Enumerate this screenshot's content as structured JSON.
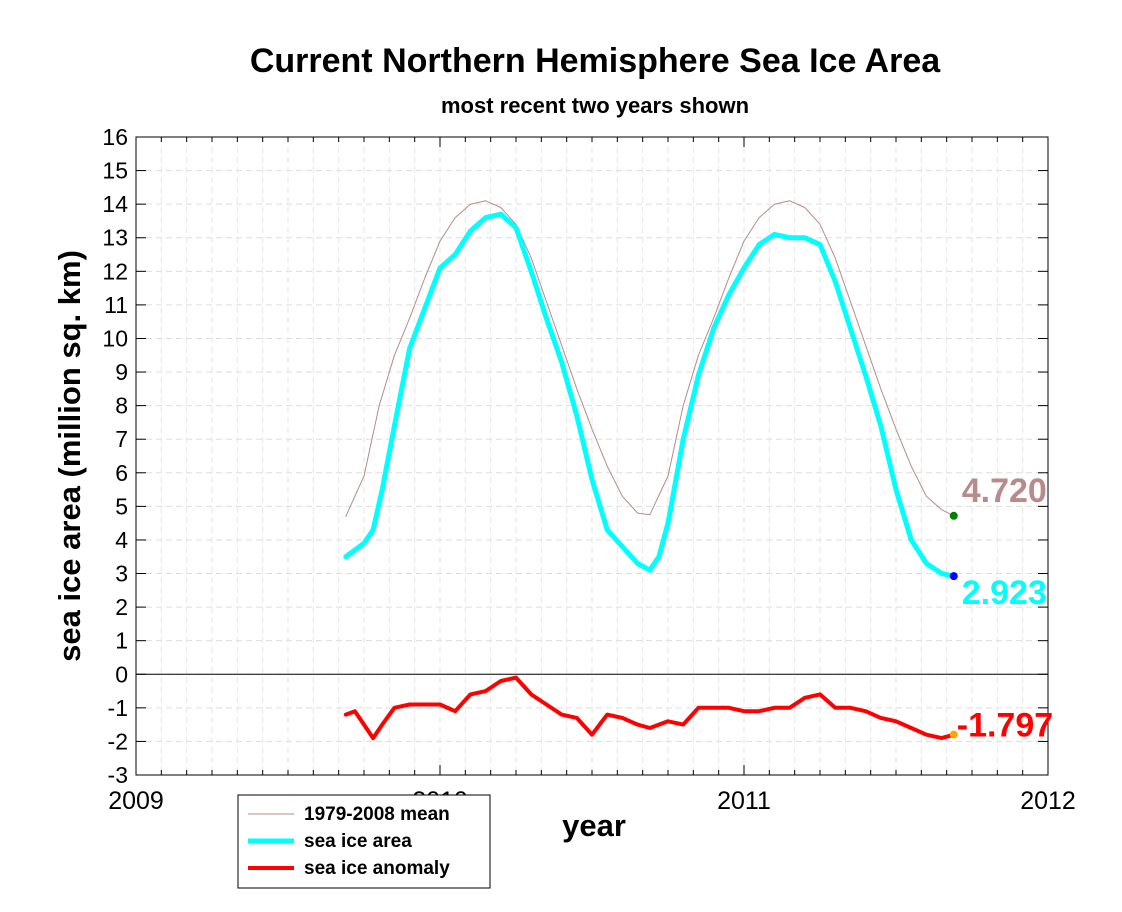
{
  "chart_data": {
    "type": "line",
    "title": "Current Northern Hemisphere Sea Ice Area",
    "subtitle": "most recent two years shown",
    "xlabel": "year",
    "ylabel": "sea ice area (million sq. km)",
    "xlim": [
      2009,
      2012
    ],
    "ylim": [
      -3,
      16
    ],
    "x_ticks": [
      "2009",
      "2010",
      "2011",
      "2012"
    ],
    "y_ticks": [
      "16",
      "15",
      "14",
      "13",
      "12",
      "11",
      "10",
      "9",
      "8",
      "7",
      "6",
      "5",
      "4",
      "3",
      "2",
      "1",
      "0",
      "-1",
      "-2",
      "-3"
    ],
    "grid": true,
    "legend_position": "bottom-left",
    "series": [
      {
        "name": "1979-2008 mean",
        "color": "#b88a8a",
        "x": [
          2009.69,
          2009.75,
          2009.8,
          2009.85,
          2009.9,
          2009.95,
          2010.0,
          2010.05,
          2010.1,
          2010.15,
          2010.2,
          2010.25,
          2010.3,
          2010.35,
          2010.4,
          2010.45,
          2010.5,
          2010.55,
          2010.6,
          2010.65,
          2010.69,
          2010.75,
          2010.8,
          2010.85,
          2010.9,
          2010.95,
          2011.0,
          2011.05,
          2011.1,
          2011.15,
          2011.2,
          2011.25,
          2011.3,
          2011.35,
          2011.4,
          2011.45,
          2011.5,
          2011.55,
          2011.6,
          2011.65,
          2011.69
        ],
        "values": [
          4.7,
          5.9,
          8.0,
          9.5,
          10.6,
          11.8,
          12.9,
          13.6,
          14.0,
          14.1,
          13.9,
          13.4,
          12.4,
          11.1,
          9.8,
          8.5,
          7.3,
          6.2,
          5.3,
          4.8,
          4.75,
          5.9,
          8.0,
          9.5,
          10.6,
          11.8,
          12.9,
          13.6,
          14.0,
          14.1,
          13.9,
          13.4,
          12.4,
          11.1,
          9.8,
          8.5,
          7.3,
          6.2,
          5.3,
          4.9,
          4.72
        ]
      },
      {
        "name": "sea ice area",
        "color": "#00ffff",
        "x": [
          2009.69,
          2009.72,
          2009.75,
          2009.78,
          2009.81,
          2009.85,
          2009.9,
          2009.95,
          2010.0,
          2010.05,
          2010.1,
          2010.15,
          2010.2,
          2010.25,
          2010.3,
          2010.35,
          2010.4,
          2010.45,
          2010.5,
          2010.55,
          2010.6,
          2010.65,
          2010.69,
          2010.72,
          2010.75,
          2010.8,
          2010.85,
          2010.9,
          2010.95,
          2011.0,
          2011.05,
          2011.1,
          2011.15,
          2011.2,
          2011.25,
          2011.3,
          2011.35,
          2011.4,
          2011.45,
          2011.5,
          2011.55,
          2011.6,
          2011.65,
          2011.69
        ],
        "values": [
          3.5,
          3.7,
          3.9,
          4.3,
          5.5,
          7.4,
          9.7,
          10.9,
          12.1,
          12.5,
          13.2,
          13.6,
          13.7,
          13.3,
          12.0,
          10.6,
          9.3,
          7.7,
          5.8,
          4.3,
          3.8,
          3.3,
          3.1,
          3.5,
          4.5,
          7.0,
          8.9,
          10.3,
          11.3,
          12.1,
          12.8,
          13.1,
          13.0,
          13.0,
          12.8,
          11.7,
          10.3,
          8.9,
          7.4,
          5.5,
          4.0,
          3.3,
          3.0,
          2.92
        ]
      },
      {
        "name": "sea ice anomaly",
        "color": "#ff0000",
        "x": [
          2009.69,
          2009.72,
          2009.75,
          2009.78,
          2009.81,
          2009.85,
          2009.9,
          2009.95,
          2010.0,
          2010.05,
          2010.1,
          2010.15,
          2010.2,
          2010.25,
          2010.3,
          2010.35,
          2010.4,
          2010.45,
          2010.5,
          2010.55,
          2010.6,
          2010.65,
          2010.69,
          2010.75,
          2010.8,
          2010.85,
          2010.9,
          2010.95,
          2011.0,
          2011.05,
          2011.1,
          2011.15,
          2011.2,
          2011.25,
          2011.3,
          2011.35,
          2011.4,
          2011.45,
          2011.5,
          2011.55,
          2011.6,
          2011.65,
          2011.69
        ],
        "values": [
          -1.2,
          -1.1,
          -1.5,
          -1.9,
          -1.5,
          -1.0,
          -0.9,
          -0.9,
          -0.9,
          -1.1,
          -0.6,
          -0.5,
          -0.2,
          -0.1,
          -0.6,
          -0.9,
          -1.2,
          -1.3,
          -1.8,
          -1.2,
          -1.3,
          -1.5,
          -1.6,
          -1.4,
          -1.5,
          -1.0,
          -1.0,
          -1.0,
          -1.1,
          -1.1,
          -1.0,
          -1.0,
          -0.7,
          -0.6,
          -1.0,
          -1.0,
          -1.1,
          -1.3,
          -1.4,
          -1.6,
          -1.8,
          -1.9,
          -1.8
        ]
      }
    ],
    "annotations": [
      {
        "text": "4.720",
        "color": "#b88a8a",
        "value": 4.72,
        "marker_color": "#008000"
      },
      {
        "text": "2.923",
        "color": "#00ffff",
        "value": 2.923,
        "marker_color": "#0000ff"
      },
      {
        "text": "-1.797",
        "color": "#ff0000",
        "value": -1.797,
        "marker_color": "#ffa500"
      }
    ]
  }
}
